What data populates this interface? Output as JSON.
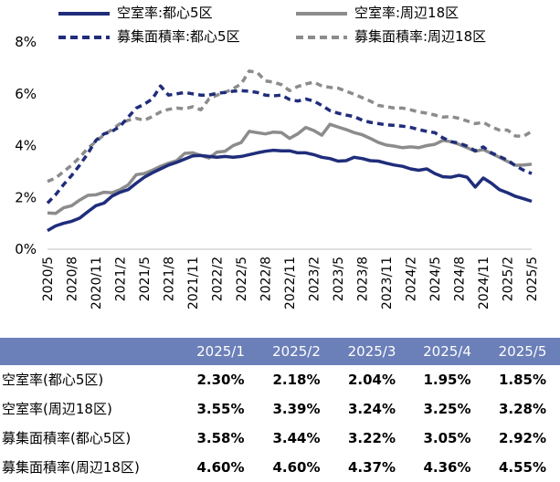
{
  "legend": [
    {
      "label": "空室率:都心5区",
      "color": "#1f2d7b",
      "dash": false
    },
    {
      "label": "空室率:周辺18区",
      "color": "#8c8c8c",
      "dash": false
    },
    {
      "label": "募集面積率:都心5区",
      "color": "#1f2d7b",
      "dash": true
    },
    {
      "label": "募集面積率:周辺18区",
      "color": "#8c8c8c",
      "dash": true
    }
  ],
  "table": {
    "headers": [
      "",
      "2025/1",
      "2025/2",
      "2025/3",
      "2025/4",
      "2025/5"
    ],
    "rows": [
      {
        "label": "空室率(都心5区)",
        "values": [
          "2.30%",
          "2.18%",
          "2.04%",
          "1.95%",
          "1.85%"
        ]
      },
      {
        "label": "空室率(周辺18区)",
        "values": [
          "3.55%",
          "3.39%",
          "3.24%",
          "3.25%",
          "3.28%"
        ]
      },
      {
        "label": "募集面積率(都心5区)",
        "values": [
          "3.58%",
          "3.44%",
          "3.22%",
          "3.05%",
          "2.92%"
        ]
      },
      {
        "label": "募集面積率(周辺18区)",
        "values": [
          "4.60%",
          "4.60%",
          "4.37%",
          "4.36%",
          "4.55%"
        ]
      }
    ]
  },
  "chart_data": {
    "type": "line",
    "title": "",
    "xlabel": "",
    "ylabel": "",
    "ylim": [
      0,
      8
    ],
    "yticks": [
      "0%",
      "2%",
      "4%",
      "6%",
      "8%"
    ],
    "grid": false,
    "legend_position": "top",
    "x": [
      "2020/5",
      "2020/6",
      "2020/7",
      "2020/8",
      "2020/9",
      "2020/10",
      "2020/11",
      "2020/12",
      "2021/1",
      "2021/2",
      "2021/3",
      "2021/4",
      "2021/5",
      "2021/6",
      "2021/7",
      "2021/8",
      "2021/9",
      "2021/10",
      "2021/11",
      "2021/12",
      "2022/1",
      "2022/2",
      "2022/3",
      "2022/4",
      "2022/5",
      "2022/6",
      "2022/7",
      "2022/8",
      "2022/9",
      "2022/10",
      "2022/11",
      "2022/12",
      "2023/1",
      "2023/2",
      "2023/3",
      "2023/4",
      "2023/5",
      "2023/6",
      "2023/7",
      "2023/8",
      "2023/9",
      "2023/10",
      "2023/11",
      "2023/12",
      "2024/1",
      "2024/2",
      "2024/3",
      "2024/4",
      "2024/5",
      "2024/6",
      "2024/7",
      "2024/8",
      "2024/9",
      "2024/10",
      "2024/11",
      "2024/12",
      "2025/1",
      "2025/2",
      "2025/3",
      "2025/4",
      "2025/5"
    ],
    "xtick_labels": [
      "2020/5",
      "2020/8",
      "2020/11",
      "2021/2",
      "2021/5",
      "2021/8",
      "2021/11",
      "2022/2",
      "2022/5",
      "2022/8",
      "2022/11",
      "2023/2",
      "2023/5",
      "2023/8",
      "2023/11",
      "2024/2",
      "2024/5",
      "2024/8",
      "2024/11",
      "2025/2",
      "2025/5"
    ],
    "series": [
      {
        "name": "空室率:都心5区",
        "color": "#1f2d7b",
        "dash": false,
        "values": [
          0.72,
          0.9,
          1.0,
          1.08,
          1.2,
          1.45,
          1.68,
          1.78,
          2.05,
          2.2,
          2.3,
          2.55,
          2.78,
          2.95,
          3.1,
          3.25,
          3.35,
          3.48,
          3.6,
          3.62,
          3.58,
          3.55,
          3.58,
          3.55,
          3.58,
          3.65,
          3.72,
          3.78,
          3.82,
          3.8,
          3.8,
          3.72,
          3.72,
          3.65,
          3.55,
          3.5,
          3.4,
          3.42,
          3.55,
          3.5,
          3.42,
          3.4,
          3.32,
          3.25,
          3.2,
          3.1,
          3.05,
          3.1,
          2.92,
          2.8,
          2.78,
          2.85,
          2.78,
          2.4,
          2.75,
          2.55,
          2.3,
          2.18,
          2.04,
          1.95,
          1.85
        ]
      },
      {
        "name": "空室率:周辺18区",
        "color": "#8c8c8c",
        "dash": false,
        "values": [
          1.4,
          1.38,
          1.6,
          1.68,
          1.9,
          2.08,
          2.1,
          2.2,
          2.18,
          2.3,
          2.48,
          2.88,
          2.92,
          3.05,
          3.2,
          3.32,
          3.42,
          3.7,
          3.72,
          3.62,
          3.52,
          3.75,
          3.78,
          4.0,
          4.12,
          4.55,
          4.5,
          4.45,
          4.52,
          4.5,
          4.28,
          4.45,
          4.7,
          4.58,
          4.4,
          4.82,
          4.72,
          4.62,
          4.5,
          4.42,
          4.28,
          4.12,
          4.02,
          3.98,
          3.92,
          3.95,
          3.92,
          4.0,
          4.05,
          4.2,
          4.15,
          4.05,
          3.92,
          3.78,
          3.85,
          3.7,
          3.55,
          3.39,
          3.24,
          3.25,
          3.28
        ]
      },
      {
        "name": "募集面積率:都心5区",
        "color": "#1f2d7b",
        "dash": true,
        "values": [
          1.78,
          2.1,
          2.5,
          2.85,
          3.25,
          3.7,
          4.2,
          4.45,
          4.55,
          4.75,
          5.1,
          5.45,
          5.6,
          5.8,
          6.3,
          5.95,
          6.0,
          6.05,
          6.0,
          5.95,
          5.95,
          6.02,
          6.05,
          6.1,
          6.12,
          6.1,
          6.05,
          5.95,
          5.92,
          5.95,
          5.78,
          5.72,
          5.8,
          5.72,
          5.55,
          5.35,
          5.25,
          5.18,
          5.12,
          4.98,
          4.9,
          4.85,
          4.8,
          4.78,
          4.75,
          4.7,
          4.62,
          4.55,
          4.5,
          4.3,
          4.15,
          4.1,
          3.98,
          3.8,
          3.95,
          3.72,
          3.58,
          3.44,
          3.22,
          3.05,
          2.92
        ]
      },
      {
        "name": "募集面積率:周辺18区",
        "color": "#8c8c8c",
        "dash": true,
        "values": [
          2.62,
          2.75,
          3.0,
          3.25,
          3.55,
          3.9,
          4.15,
          4.42,
          4.62,
          4.85,
          4.98,
          5.05,
          4.98,
          5.12,
          5.3,
          5.4,
          5.45,
          5.42,
          5.5,
          5.38,
          5.8,
          5.95,
          6.05,
          6.2,
          6.38,
          6.88,
          6.82,
          6.5,
          6.45,
          6.35,
          6.12,
          6.28,
          6.38,
          6.45,
          6.3,
          6.25,
          6.22,
          6.1,
          5.98,
          5.85,
          5.72,
          5.55,
          5.5,
          5.45,
          5.45,
          5.38,
          5.3,
          5.25,
          5.18,
          5.1,
          5.12,
          5.05,
          4.95,
          4.85,
          4.9,
          4.72,
          4.6,
          4.6,
          4.37,
          4.36,
          4.55
        ]
      }
    ]
  }
}
